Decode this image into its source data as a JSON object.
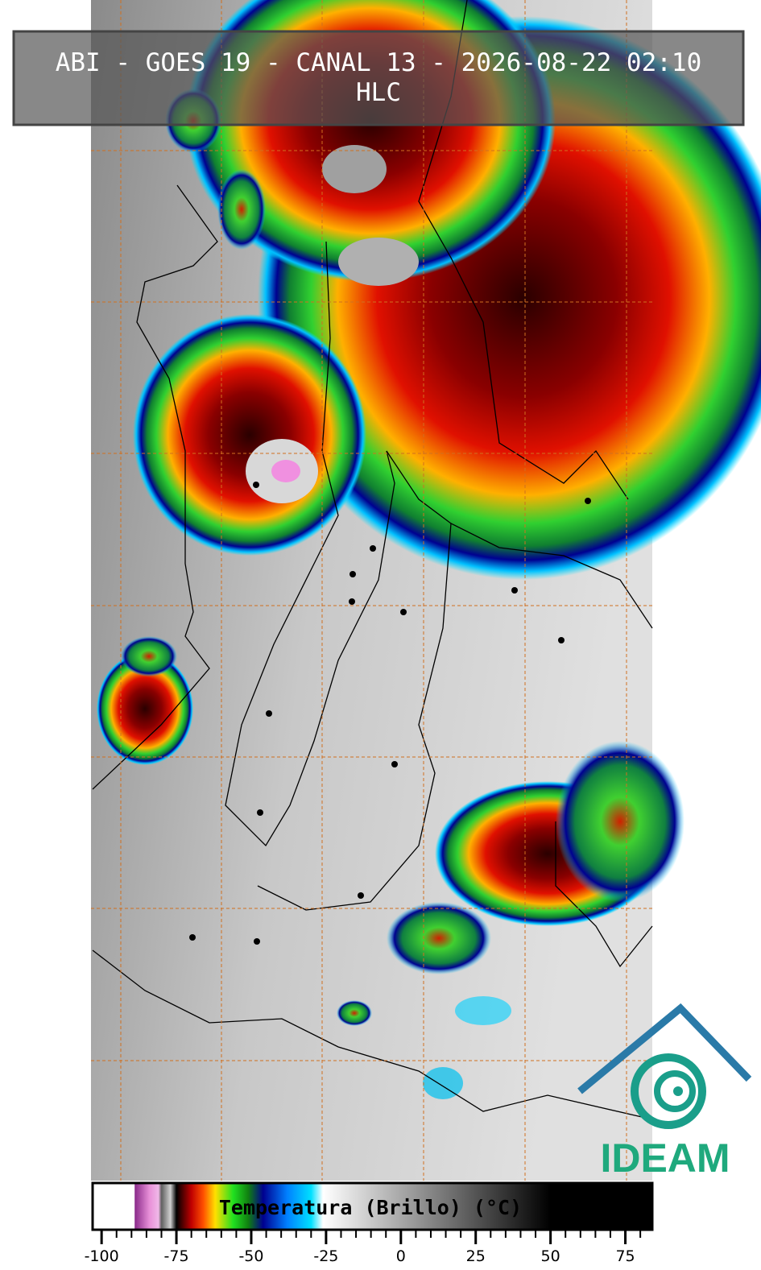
{
  "header": {
    "line1": "ABI - GOES 19 - CANAL 13 - 2026-08-22 02:10",
    "line2": "HLC"
  },
  "colorbar": {
    "label": "Temperatura (Brillo) (°C)",
    "lim": [
      -103,
      84
    ],
    "ticks": [
      -100,
      -75,
      -50,
      -25,
      0,
      25,
      50,
      75
    ],
    "stops": [
      {
        "value": -103,
        "color": "#ffffff"
      },
      {
        "value": -89,
        "color": "#ffffff"
      },
      {
        "value": -88.9,
        "color": "#8a2a8a"
      },
      {
        "value": -84,
        "color": "#e890d8"
      },
      {
        "value": -81,
        "color": "#f0b8e8"
      },
      {
        "value": -80,
        "color": "#606060"
      },
      {
        "value": -77,
        "color": "#d0d0d0"
      },
      {
        "value": -75,
        "color": "#000000"
      },
      {
        "value": -70,
        "color": "#c00000"
      },
      {
        "value": -66,
        "color": "#ff5000"
      },
      {
        "value": -62,
        "color": "#ffe000"
      },
      {
        "value": -56,
        "color": "#20e020"
      },
      {
        "value": -51,
        "color": "#108010"
      },
      {
        "value": -46,
        "color": "#000090"
      },
      {
        "value": -38,
        "color": "#0080ff"
      },
      {
        "value": -30,
        "color": "#00e0ff"
      },
      {
        "value": -26,
        "color": "#ffffff"
      },
      {
        "value": 50,
        "color": "#000000"
      },
      {
        "value": 84,
        "color": "#000000"
      }
    ]
  },
  "logo": {
    "text": "IDEAM"
  }
}
